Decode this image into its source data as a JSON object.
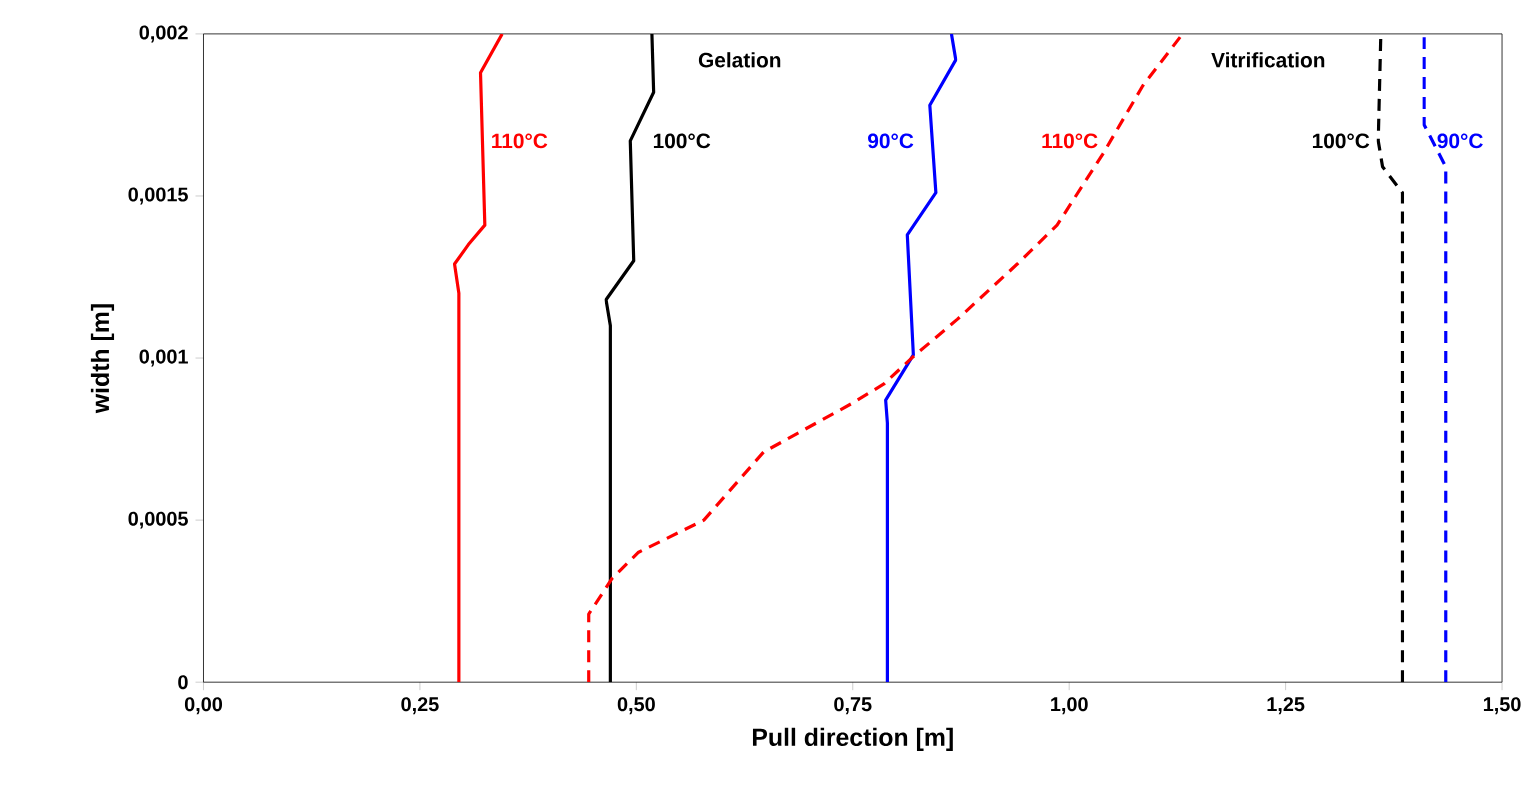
{
  "chart_data": {
    "type": "line",
    "xlabel": "Pull direction [m]",
    "ylabel": "width [m]",
    "xlim": [
      0,
      1.5
    ],
    "ylim": [
      0,
      0.002
    ],
    "xticks": [
      {
        "value": 0,
        "label": "0,00"
      },
      {
        "value": 0.25,
        "label": "0,25"
      },
      {
        "value": 0.5,
        "label": "0,50"
      },
      {
        "value": 0.75,
        "label": "0,75"
      },
      {
        "value": 1,
        "label": "1,00"
      },
      {
        "value": 1.25,
        "label": "1,25"
      },
      {
        "value": 1.5,
        "label": "1,50"
      }
    ],
    "yticks": [
      0,
      {
        "value": 0.0005,
        "label": "0,0005"
      },
      {
        "value": 0.001,
        "label": "0,001"
      },
      {
        "value": 0.0015,
        "label": "0,0015"
      },
      {
        "value": 0.002,
        "label": "0,002"
      }
    ],
    "grid": false,
    "legend": false,
    "marker": "none",
    "annotations": [
      "Gelation",
      "Vitrification"
    ],
    "series": [
      {
        "name": "110°C",
        "color": "#ff0000",
        "line_style": "solid",
        "x": [
          0.295,
          0.295,
          0.29,
          0.306,
          0.325,
          0.32,
          0.345
        ],
        "values": [
          0,
          0.0012,
          0.00129,
          0.00135,
          0.00141,
          0.00188,
          0.002
        ]
      },
      {
        "name": "100°C",
        "color": "#000000",
        "line_style": "solid",
        "x": [
          0.47,
          0.47,
          0.465,
          0.497,
          0.493,
          0.52,
          0.518
        ],
        "values": [
          0,
          0.0011,
          0.00118,
          0.0013,
          0.00167,
          0.00182,
          0.002
        ]
      },
      {
        "name": "90°C",
        "color": "#0000ff",
        "line_style": "solid",
        "x": [
          0.79,
          0.79,
          0.788,
          0.82,
          0.813,
          0.846,
          0.839,
          0.869,
          0.864
        ],
        "values": [
          0,
          0.0008,
          0.00087,
          0.00101,
          0.00138,
          0.00151,
          0.00178,
          0.00192,
          0.002
        ]
      },
      {
        "name": "110°C",
        "color": "#ff0000",
        "line_style": "dashed",
        "x": [
          0.445,
          0.445,
          0.472,
          0.502,
          0.578,
          0.647,
          0.749,
          0.786,
          0.818,
          0.871,
          0.94,
          0.986,
          1.039,
          1.085,
          1.131
        ],
        "values": [
          0,
          0.00021,
          0.00032,
          0.0004,
          0.0005,
          0.00071,
          0.00086,
          0.00092,
          0.001,
          0.00112,
          0.00129,
          0.00141,
          0.00163,
          0.00184,
          0.002
        ]
      },
      {
        "name": "100°C",
        "color": "#000000",
        "line_style": "dashed",
        "x": [
          1.385,
          1.385,
          1.385,
          1.362,
          1.357,
          1.36
        ],
        "values": [
          0,
          0.00145,
          0.00151,
          0.00159,
          0.00167,
          0.002
        ]
      },
      {
        "name": "90°C",
        "color": "#0000ff",
        "line_style": "dashed",
        "x": [
          1.435,
          1.435,
          1.41,
          1.41
        ],
        "values": [
          0,
          0.00159,
          0.00172,
          0.002
        ]
      }
    ]
  }
}
